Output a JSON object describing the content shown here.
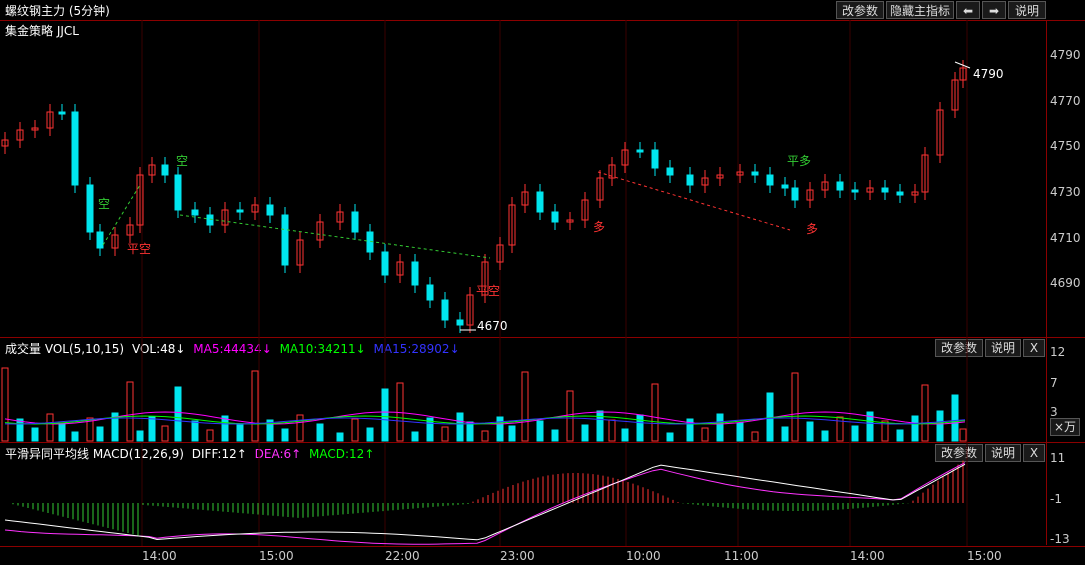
{
  "header": {
    "title": "螺纹钢主力 (5分钟)",
    "buttons": [
      "改参数",
      "隐藏主指标",
      "⬅",
      "➡",
      "说明"
    ]
  },
  "price_panel": {
    "strategy": "集金策略 JJCL",
    "y_ticks": [
      "4790",
      "4770",
      "4750",
      "4730",
      "4710",
      "4690"
    ],
    "high_label": "4790",
    "low_label": "4670",
    "signals": [
      {
        "text": "空",
        "color": "#33cc33"
      },
      {
        "text": "平空",
        "color": "#ff3333"
      },
      {
        "text": "空",
        "color": "#33cc33"
      },
      {
        "text": "平空",
        "color": "#ff3333"
      },
      {
        "text": "多",
        "color": "#ff3333"
      },
      {
        "text": "平多",
        "color": "#33cc33"
      },
      {
        "text": "多",
        "color": "#ff3333"
      }
    ]
  },
  "volume_panel": {
    "title": "成交量 VOL(5,10,15)",
    "vol": "VOL:48↓",
    "ma5": "MA5:44434↓",
    "ma10": "MA10:34211↓",
    "ma15": "MA15:28902↓",
    "buttons": [
      "改参数",
      "说明",
      "X"
    ],
    "y_ticks": [
      "12",
      "7",
      "3"
    ],
    "unit": "×万"
  },
  "macd_panel": {
    "title": "平滑异同平均线 MACD(12,26,9)",
    "diff": "DIFF:12↑",
    "dea": "DEA:6↑",
    "macd": "MACD:12↑",
    "buttons": [
      "改参数",
      "说明",
      "X"
    ],
    "y_ticks": [
      "11",
      "-1",
      "-13"
    ]
  },
  "time_axis": [
    "14:00",
    "15:00",
    "22:00",
    "23:00",
    "10:00",
    "11:00",
    "14:00",
    "15:00"
  ],
  "colors": {
    "up": "#ff3333",
    "down": "#00e5ee",
    "ma5": "#ff00ff",
    "ma10": "#00ff00",
    "ma15": "#3333ff",
    "dea": "#ff33ff",
    "diff": "#ffffff"
  }
}
